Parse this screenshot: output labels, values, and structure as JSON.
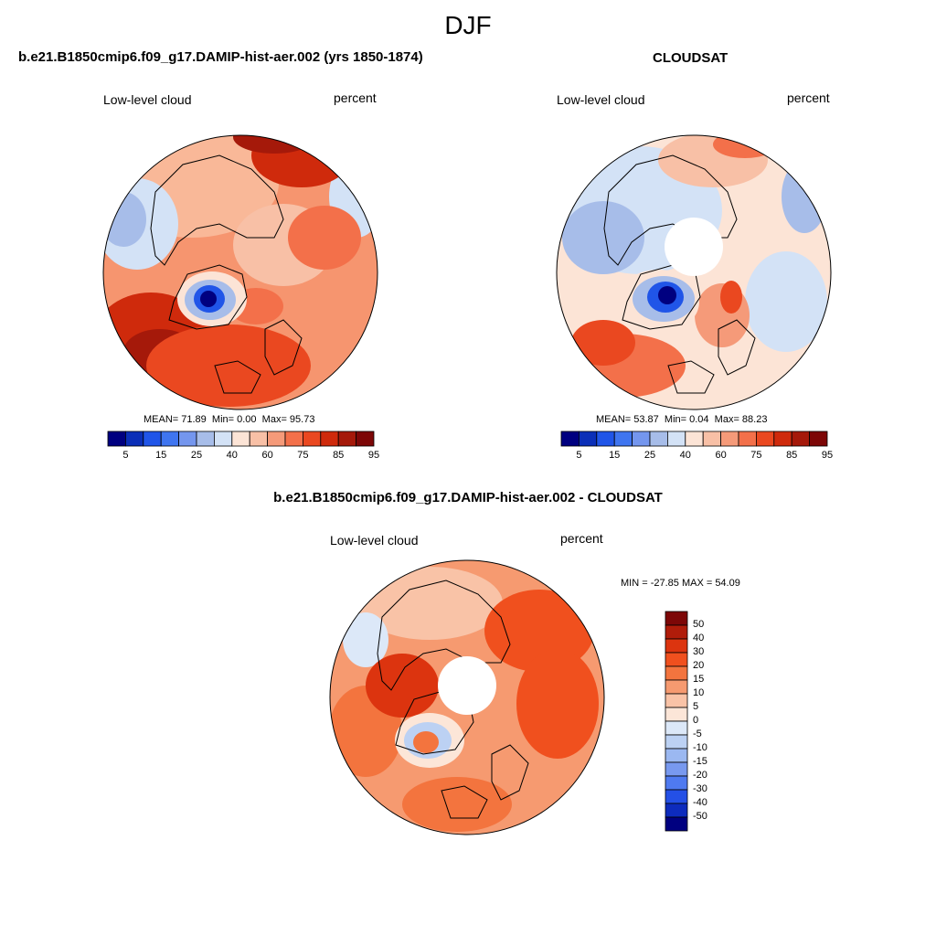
{
  "figure": {
    "title": "DJF"
  },
  "panels": [
    {
      "id": "model",
      "title": "b.e21.B1850cmip6.f09_g17.DAMIP-hist-aer.002 (yrs 1850-1874)",
      "left_label": "Low-level cloud",
      "right_label": "percent",
      "stats": {
        "mean": "MEAN=  71.89",
        "min": "Min=   0.00",
        "max": "Max=  95.73"
      },
      "colorbar_ticks": [
        "5",
        "15",
        "25",
        "40",
        "60",
        "75",
        "85",
        "95"
      ],
      "pole_hole": false
    },
    {
      "id": "obs",
      "title": "CLOUDSAT",
      "left_label": "Low-level cloud",
      "right_label": "percent",
      "stats": {
        "mean": "MEAN=  53.87",
        "min": "Min=   0.04",
        "max": "Max=  88.23"
      },
      "colorbar_ticks": [
        "5",
        "15",
        "25",
        "40",
        "60",
        "75",
        "85",
        "95"
      ],
      "pole_hole": true
    },
    {
      "id": "diff",
      "title": "b.e21.B1850cmip6.f09_g17.DAMIP-hist-aer.002 - CLOUDSAT",
      "left_label": "Low-level cloud",
      "right_label": "percent",
      "stats": {
        "minmax": "MIN = -27.85 MAX =  54.09"
      },
      "colorbar_ticks": [
        "50",
        "40",
        "30",
        "20",
        "15",
        "10",
        "5",
        "0",
        "-5",
        "-10",
        "-15",
        "-20",
        "-30",
        "-40",
        "-50"
      ],
      "pole_hole": true
    }
  ],
  "colorbars": {
    "absolute_colors": [
      "#000080",
      "#0b2fb8",
      "#2055e8",
      "#3f75f0",
      "#7496ee",
      "#a7bde9",
      "#d3e2f6",
      "#fce4d6",
      "#f8c0a6",
      "#f59a79",
      "#f3704a",
      "#ea4820",
      "#cf2a0c",
      "#a5190a",
      "#7d0707"
    ],
    "diff_colors": [
      "#7d0707",
      "#b01c0a",
      "#dc340f",
      "#f0501e",
      "#f3743e",
      "#f69a70",
      "#f9c3a7",
      "#fce6d8",
      "#dce8f8",
      "#bcd1f3",
      "#9bb8f1",
      "#7899ef",
      "#4f7af0",
      "#2450e6",
      "#0d2bbd",
      "#000080"
    ]
  }
}
